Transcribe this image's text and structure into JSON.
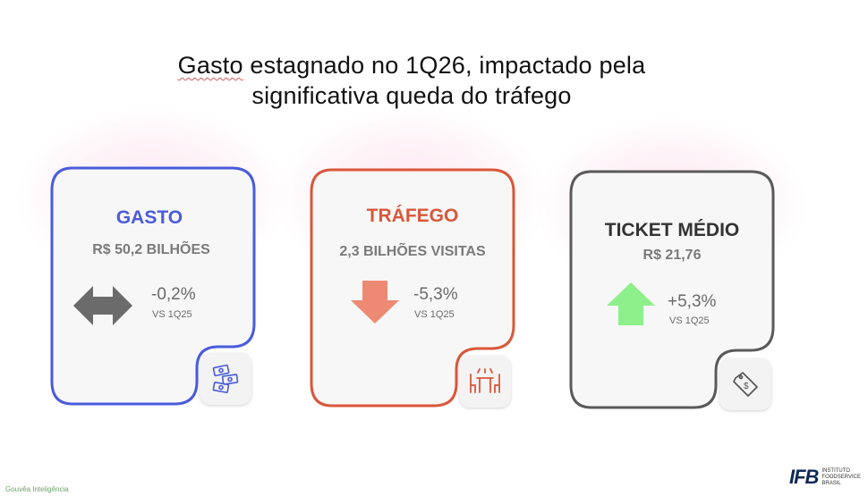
{
  "title": {
    "line1_squiggled": "Gasto",
    "line1_rest": " estagnado no 1Q26, impactado pela",
    "line2": "significativa queda do tráfego"
  },
  "cards": [
    {
      "title": "GASTO",
      "value": "R$ 50,2 BILHÕES",
      "change": "-0,2%",
      "comparison": "VS 1Q25",
      "indicator_icon": "left-right-arrow-icon",
      "badge_icon": "money-bills-icon",
      "color": "#4a5bdc",
      "indicator_color": "#6b6b6b"
    },
    {
      "title": "TRÁFEGO",
      "value": "2,3 BILHÕES VISITAS",
      "change": "-5,3%",
      "comparison": "VS 1Q25",
      "indicator_icon": "down-arrow-icon",
      "badge_icon": "dining-table-icon",
      "color": "#d9573a",
      "indicator_color": "#ee8a73"
    },
    {
      "title": "TICKET MÉDIO",
      "value": "R$ 21,76",
      "change": "+5,3%",
      "comparison": "VS 1Q25",
      "indicator_icon": "up-arrow-icon",
      "badge_icon": "price-tag-icon",
      "color": "#5a5a5a",
      "indicator_color": "#8ef08b"
    }
  ],
  "footer": {
    "source": "Gouvêa Inteligência",
    "logo_mark": "IFB",
    "logo_text": [
      "INSTITUTO",
      "FOODSERVICE",
      "BRASIL"
    ]
  }
}
